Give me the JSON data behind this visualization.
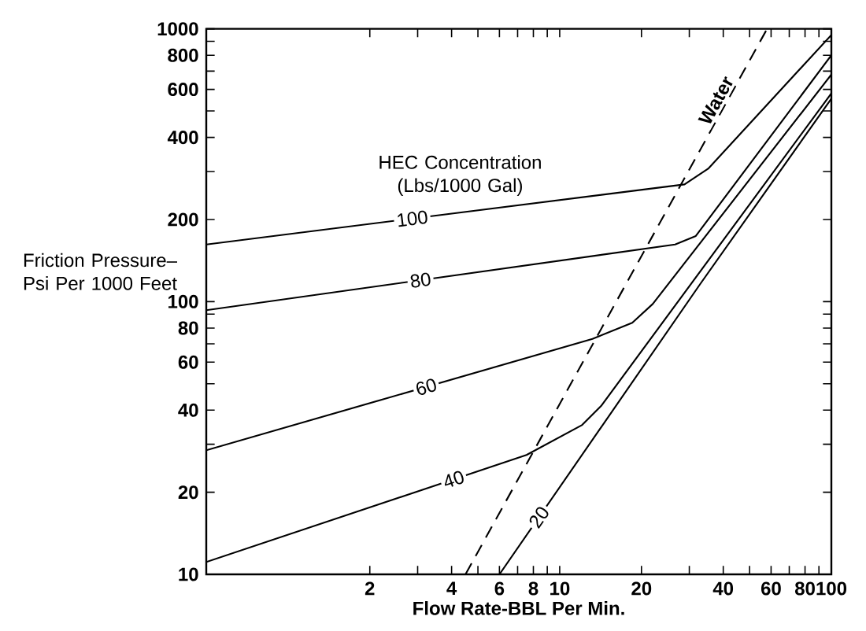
{
  "chart_data": {
    "type": "line",
    "xlabel": "Flow Rate-BBL Per Min.",
    "ylabel": "Friction Pressure–Psi Per 1000 Feet",
    "annotations": [
      "HEC Concentration (Lbs/1000 Gal)"
    ],
    "log": "xy",
    "xlim": [
      0.5,
      100
    ],
    "ylim": [
      10,
      1000
    ],
    "xticks": [
      2,
      {
        "value": 3,
        "label": null
      },
      4,
      {
        "value": 5,
        "label": null
      },
      6,
      {
        "value": 7,
        "label": null
      },
      8,
      {
        "value": 9,
        "label": null
      },
      10,
      20,
      {
        "value": 30,
        "label": null
      },
      40,
      {
        "value": 50,
        "label": null
      },
      60,
      {
        "value": 70,
        "label": null
      },
      80,
      {
        "value": 90,
        "label": null
      },
      100
    ],
    "yticks": [
      10,
      20,
      {
        "value": 30,
        "label": null
      },
      40,
      {
        "value": 50,
        "label": null
      },
      60,
      {
        "value": 70,
        "label": null
      },
      80,
      {
        "value": 90,
        "label": null
      },
      100,
      200,
      {
        "value": 300,
        "label": null
      },
      400,
      {
        "value": 500,
        "label": null
      },
      600,
      {
        "value": 700,
        "label": null
      },
      800,
      {
        "value": 900,
        "label": null
      },
      1000
    ],
    "legend": false,
    "marker": "none",
    "series": [
      {
        "name": "100",
        "color": "#000000",
        "line_style": "solid",
        "x": [
          0.5,
          28.8,
          35.2,
          100
        ],
        "values": [
          162,
          269,
          307,
          950
        ]
      },
      {
        "name": "80",
        "color": "#000000",
        "line_style": "solid",
        "x": [
          0.5,
          26.6,
          31.7,
          100
        ],
        "values": [
          93,
          162,
          174,
          800
        ]
      },
      {
        "name": "60",
        "color": "#000000",
        "line_style": "solid",
        "x": [
          0.5,
          13.2,
          18.5,
          22,
          100
        ],
        "values": [
          28.5,
          73,
          83.6,
          98,
          680
        ]
      },
      {
        "name": "40",
        "color": "#000000",
        "line_style": "solid",
        "x": [
          0.5,
          7.55,
          12.1,
          14.2,
          100
        ],
        "values": [
          11.1,
          27.4,
          35.3,
          41.4,
          580
        ]
      },
      {
        "name": "20",
        "color": "#000000",
        "line_style": "solid",
        "x": [
          6,
          32.9,
          100
        ],
        "values": [
          10,
          116,
          555
        ]
      },
      {
        "name": "Water",
        "color": "#000000",
        "line_style": "dashed",
        "x": [
          4.5,
          58
        ],
        "values": [
          10,
          1000
        ]
      }
    ]
  }
}
